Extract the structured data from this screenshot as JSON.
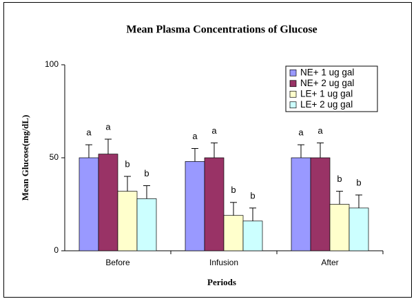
{
  "chart_data": {
    "type": "bar",
    "title": "Mean Plasma Concentrations of Glucose",
    "x_label": "Periods",
    "y_label": "Mean Glucose(mg/dL)",
    "categories": [
      "Before",
      "Infusion",
      "After"
    ],
    "series": [
      {
        "name": "NE+ 1 ug gal",
        "color": "#9999ff",
        "values": [
          50,
          48,
          50
        ],
        "errors": [
          7,
          7,
          7
        ],
        "letters": [
          "a",
          "a",
          "a"
        ]
      },
      {
        "name": "NE+ 2 ug gal",
        "color": "#993366",
        "values": [
          52,
          50,
          50
        ],
        "errors": [
          8,
          8,
          8
        ],
        "letters": [
          "a",
          "a",
          "a"
        ]
      },
      {
        "name": "LE+ 1 ug gal",
        "color": "#ffffcc",
        "values": [
          32,
          19,
          25
        ],
        "errors": [
          8,
          7,
          7
        ],
        "letters": [
          "b",
          "b",
          "b"
        ]
      },
      {
        "name": "LE+ 2 ug gal",
        "color": "#ccffff",
        "values": [
          28,
          16,
          23
        ],
        "errors": [
          7,
          7,
          7
        ],
        "letters": [
          "b",
          "b",
          "b"
        ]
      }
    ],
    "ylim": [
      0,
      100
    ],
    "yticks": [
      0,
      50,
      100
    ],
    "grid": false,
    "legend": "upper right"
  }
}
